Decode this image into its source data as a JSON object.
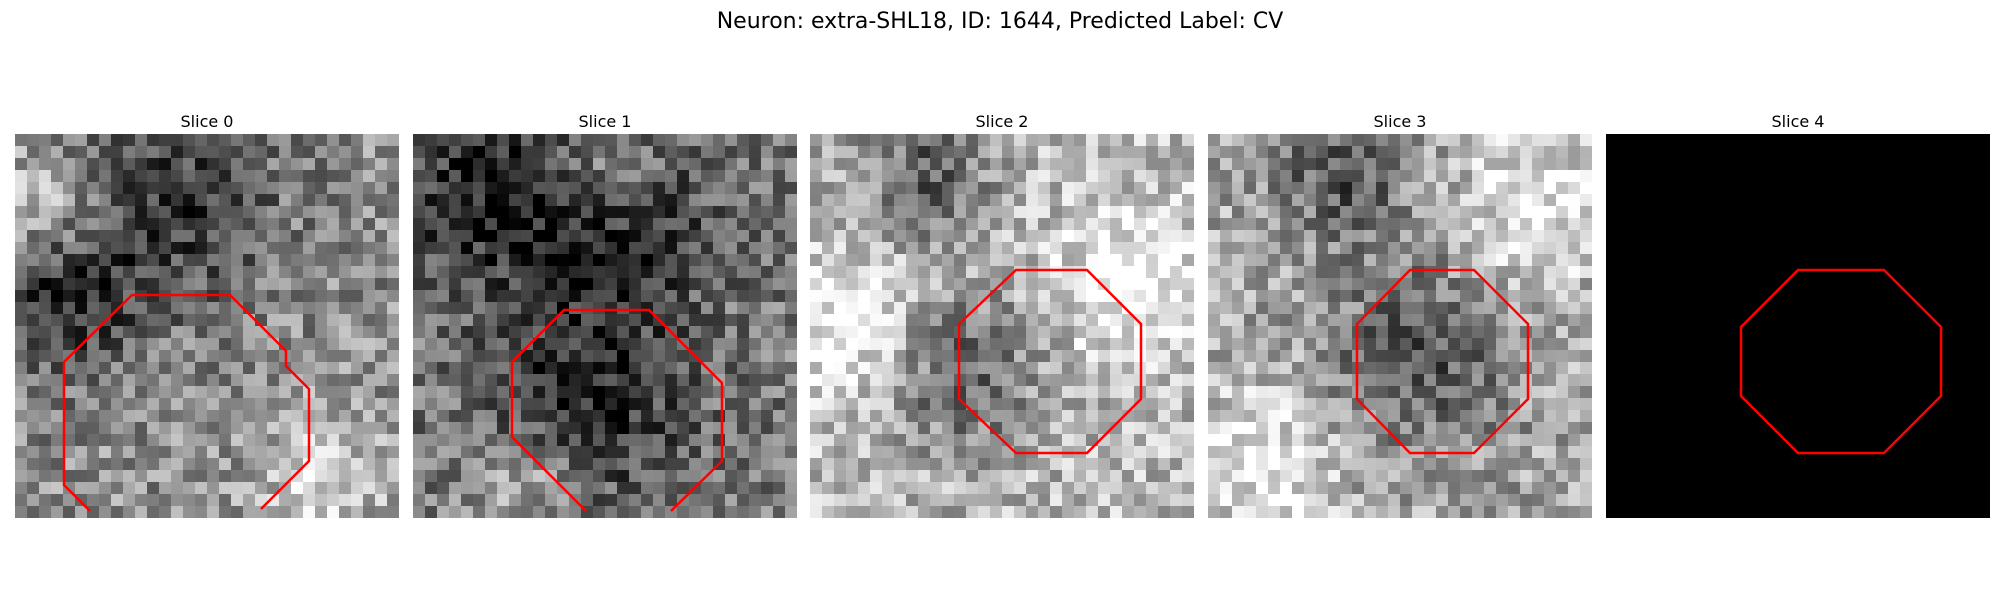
{
  "figure": {
    "title": "Neuron: extra-SHL18, ID: 1644, Predicted Label: CV"
  },
  "colors": {
    "contour": "#ff0000",
    "background": "#ffffff",
    "empty_slice": "#000000"
  },
  "panels": [
    {
      "title": "Slice 0",
      "seed": 11,
      "mean": 0.56,
      "dark_blobs": [
        [
          0.4,
          0.18,
          0.2
        ],
        [
          0.12,
          0.45,
          0.14
        ]
      ],
      "bright_blobs": [
        [
          0.08,
          0.18,
          0.1
        ],
        [
          0.8,
          0.9,
          0.12
        ]
      ]
    },
    {
      "title": "Slice 1",
      "seed": 23,
      "mean": 0.48,
      "dark_blobs": [
        [
          0.2,
          0.15,
          0.18
        ],
        [
          0.55,
          0.25,
          0.16
        ],
        [
          0.45,
          0.7,
          0.18
        ]
      ],
      "bright_blobs": [
        [
          0.5,
          0.12,
          0.1
        ],
        [
          0.3,
          0.9,
          0.1
        ]
      ]
    },
    {
      "title": "Slice 2",
      "seed": 37,
      "mean": 0.72,
      "dark_blobs": [
        [
          0.4,
          0.62,
          0.14
        ],
        [
          0.3,
          0.1,
          0.12
        ]
      ],
      "bright_blobs": [
        [
          0.1,
          0.5,
          0.12
        ],
        [
          0.85,
          0.4,
          0.14
        ]
      ]
    },
    {
      "title": "Slice 3",
      "seed": 51,
      "mean": 0.66,
      "dark_blobs": [
        [
          0.55,
          0.58,
          0.17
        ],
        [
          0.35,
          0.1,
          0.12
        ]
      ],
      "bright_blobs": [
        [
          0.15,
          0.85,
          0.14
        ],
        [
          0.85,
          0.2,
          0.14
        ]
      ]
    },
    {
      "title": "Slice 4",
      "empty": true
    }
  ]
}
